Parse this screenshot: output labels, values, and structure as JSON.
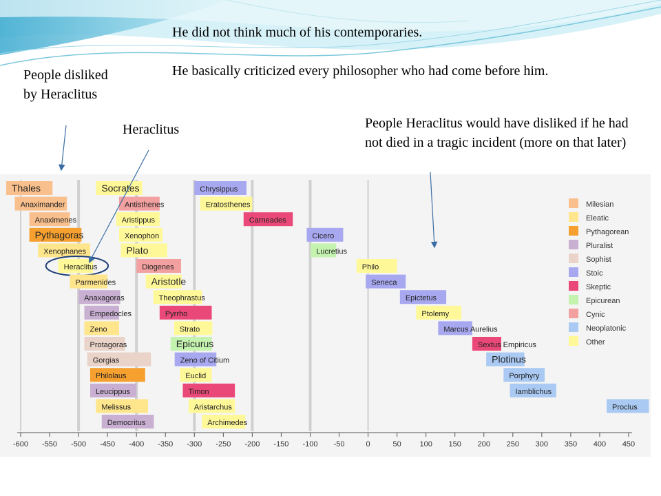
{
  "slide": {
    "line1": "He did not think much of his contemporaries.",
    "line2": "He basically criticized every philosopher who had come before him.",
    "label_left": "People disliked by Heraclitus",
    "label_heraclitus": "Heraclitus",
    "label_right": "People Heraclitus would have disliked if he had not died in a tragic incident (more on that later)"
  },
  "colors": {
    "Milesian": "#f9c08d",
    "Eleatic": "#ffe58c",
    "Pythagorean": "#f6a030",
    "Pluralist": "#c9b0d2",
    "Sophist": "#ead3c8",
    "Stoic": "#a8a8f0",
    "Skeptic": "#ea4878",
    "Epicurean": "#c4f3b0",
    "Cynic": "#f3a0a0",
    "Neoplatonic": "#aacaf3",
    "Other": "#fff898",
    "highlight": "#1f3f78",
    "arrow": "#3a6da4"
  },
  "chart_data": {
    "type": "timeline",
    "x_ticks": [
      -600,
      -550,
      -500,
      -450,
      -400,
      -350,
      -300,
      -250,
      -200,
      -150,
      -100,
      -50,
      0,
      50,
      100,
      150,
      200,
      250,
      300,
      350,
      400,
      450
    ],
    "xlim": [
      -600,
      450
    ],
    "highlighted": "Heraclitus",
    "legend": [
      "Milesian",
      "Eleatic",
      "Pythagorean",
      "Pluralist",
      "Sophist",
      "Stoic",
      "Skeptic",
      "Epicurean",
      "Cynic",
      "Neoplatonic",
      "Other"
    ],
    "legend_position": "right",
    "bars": [
      {
        "name": "Thales",
        "school": "Milesian",
        "start": -625,
        "end": -545,
        "row": 0,
        "big": true
      },
      {
        "name": "Socrates",
        "school": "Other",
        "start": -470,
        "end": -390,
        "row": 0,
        "big": true
      },
      {
        "name": "Chrysippus",
        "school": "Stoic",
        "start": -300,
        "end": -210,
        "row": 0
      },
      {
        "name": "Anaximander",
        "school": "Milesian",
        "start": -610,
        "end": -520,
        "row": 1
      },
      {
        "name": "Antisthenes",
        "school": "Cynic",
        "start": -430,
        "end": -360,
        "row": 1
      },
      {
        "name": "Eratosthenes",
        "school": "Other",
        "start": -290,
        "end": -200,
        "row": 1
      },
      {
        "name": "Anaximenes",
        "school": "Milesian",
        "start": -585,
        "end": -515,
        "row": 2
      },
      {
        "name": "Aristippus",
        "school": "Other",
        "start": -435,
        "end": -360,
        "row": 2
      },
      {
        "name": "Carneades",
        "school": "Skeptic",
        "start": -215,
        "end": -130,
        "row": 2
      },
      {
        "name": "Pythagoras",
        "school": "Pythagorean",
        "start": -585,
        "end": -495,
        "row": 3,
        "big": true
      },
      {
        "name": "Xenophon",
        "school": "Other",
        "start": -430,
        "end": -355,
        "row": 3
      },
      {
        "name": "Cicero",
        "school": "Stoic",
        "start": -106,
        "end": -43,
        "row": 3
      },
      {
        "name": "Xenophanes",
        "school": "Eleatic",
        "start": -570,
        "end": -480,
        "row": 4
      },
      {
        "name": "Plato",
        "school": "Other",
        "start": -427,
        "end": -347,
        "row": 4,
        "big": true
      },
      {
        "name": "Lucretius",
        "school": "Epicurean",
        "start": -99,
        "end": -55,
        "row": 4
      },
      {
        "name": "Heraclitus",
        "school": "Other",
        "start": -535,
        "end": -475,
        "row": 5
      },
      {
        "name": "Diogenes",
        "school": "Cynic",
        "start": -400,
        "end": -323,
        "row": 5
      },
      {
        "name": "Philo",
        "school": "Other",
        "start": -20,
        "end": 50,
        "row": 5
      },
      {
        "name": "Parmenides",
        "school": "Eleatic",
        "start": -515,
        "end": -450,
        "row": 6
      },
      {
        "name": "Aristotle",
        "school": "Other",
        "start": -384,
        "end": -322,
        "row": 6,
        "big": true
      },
      {
        "name": "Seneca",
        "school": "Stoic",
        "start": -4,
        "end": 65,
        "row": 6
      },
      {
        "name": "Anaxagoras",
        "school": "Pluralist",
        "start": -500,
        "end": -428,
        "row": 7
      },
      {
        "name": "Theophrastus",
        "school": "Other",
        "start": -371,
        "end": -287,
        "row": 7
      },
      {
        "name": "Epictetus",
        "school": "Stoic",
        "start": 55,
        "end": 135,
        "row": 7
      },
      {
        "name": "Empedocles",
        "school": "Pluralist",
        "start": -490,
        "end": -430,
        "row": 8
      },
      {
        "name": "Pyrrho",
        "school": "Skeptic",
        "start": -360,
        "end": -270,
        "row": 8
      },
      {
        "name": "Ptolemy",
        "school": "Other",
        "start": 83,
        "end": 161,
        "row": 8
      },
      {
        "name": "Zeno",
        "school": "Eleatic",
        "start": -490,
        "end": -430,
        "row": 9
      },
      {
        "name": "Strato",
        "school": "Other",
        "start": -335,
        "end": -269,
        "row": 9
      },
      {
        "name": "Marcus Aurelius",
        "school": "Stoic",
        "start": 121,
        "end": 180,
        "row": 9
      },
      {
        "name": "Protagoras",
        "school": "Sophist",
        "start": -490,
        "end": -420,
        "row": 10
      },
      {
        "name": "Epicurus",
        "school": "Epicurean",
        "start": -341,
        "end": -270,
        "row": 10,
        "big": true
      },
      {
        "name": "Sextus Empiricus",
        "school": "Skeptic",
        "start": 180,
        "end": 230,
        "row": 10
      },
      {
        "name": "Gorgias",
        "school": "Sophist",
        "start": -485,
        "end": -375,
        "row": 11
      },
      {
        "name": "Zeno of Citium",
        "school": "Stoic",
        "start": -334,
        "end": -262,
        "row": 11
      },
      {
        "name": "Plotinus",
        "school": "Neoplatonic",
        "start": 204,
        "end": 270,
        "row": 11,
        "big": true
      },
      {
        "name": "Philolaus",
        "school": "Pythagorean",
        "start": -480,
        "end": -385,
        "row": 12
      },
      {
        "name": "Euclid",
        "school": "Other",
        "start": -325,
        "end": -270,
        "row": 12
      },
      {
        "name": "Porphyry",
        "school": "Neoplatonic",
        "start": 234,
        "end": 305,
        "row": 12
      },
      {
        "name": "Leucippus",
        "school": "Pluralist",
        "start": -480,
        "end": -400,
        "row": 13
      },
      {
        "name": "Timon",
        "school": "Skeptic",
        "start": -320,
        "end": -230,
        "row": 13
      },
      {
        "name": "Iamblichus",
        "school": "Neoplatonic",
        "start": 245,
        "end": 325,
        "row": 13
      },
      {
        "name": "Melissus",
        "school": "Eleatic",
        "start": -470,
        "end": -380,
        "row": 14
      },
      {
        "name": "Aristarchus",
        "school": "Other",
        "start": -310,
        "end": -230,
        "row": 14
      },
      {
        "name": "Proclus",
        "school": "Neoplatonic",
        "start": 412,
        "end": 485,
        "row": 14
      },
      {
        "name": "Democritus",
        "school": "Pluralist",
        "start": -460,
        "end": -370,
        "row": 15
      },
      {
        "name": "Archimedes",
        "school": "Other",
        "start": -287,
        "end": -212,
        "row": 15
      }
    ]
  }
}
